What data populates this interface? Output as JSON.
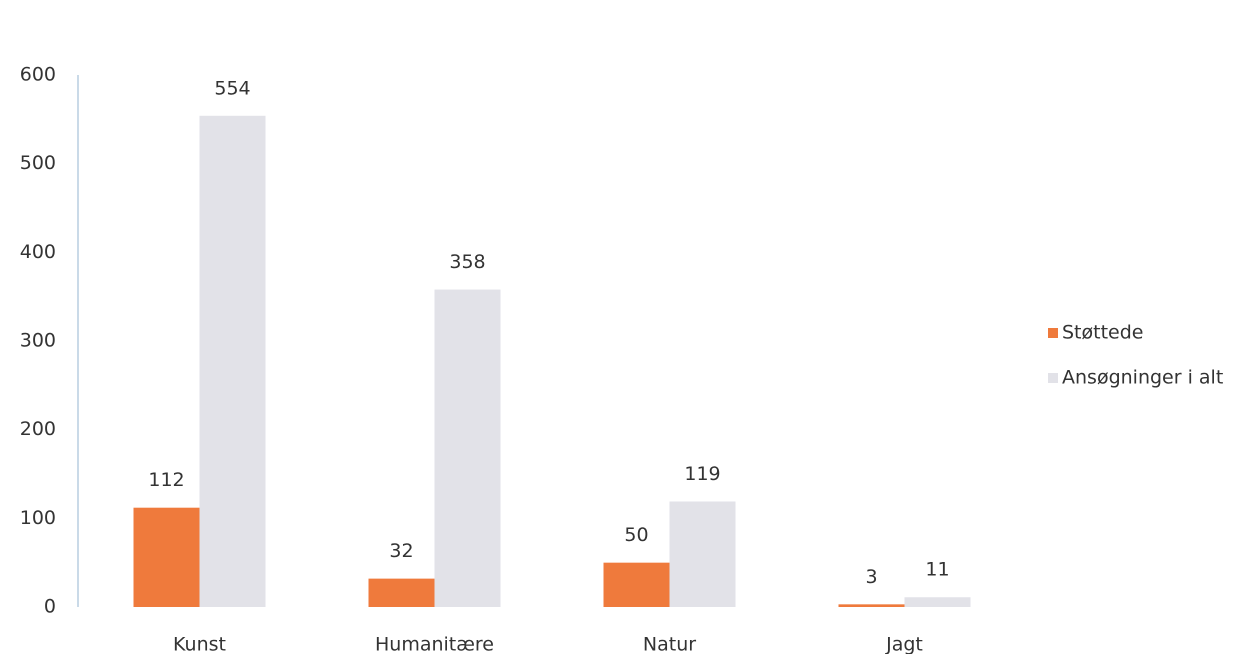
{
  "chart_data": {
    "type": "bar",
    "categories": [
      "Kunst",
      "Humanitære",
      "Natur",
      "Jagt"
    ],
    "series": [
      {
        "name": "Støttede",
        "color": "#ef7a3c",
        "values": [
          112,
          32,
          50,
          3
        ]
      },
      {
        "name": "Ansøgninger i alt",
        "color": "#e2e2e8",
        "values": [
          554,
          358,
          119,
          11
        ]
      }
    ],
    "ylim": [
      0,
      600
    ],
    "yticks": [
      0,
      100,
      200,
      300,
      400,
      500,
      600
    ],
    "legend": "right"
  }
}
